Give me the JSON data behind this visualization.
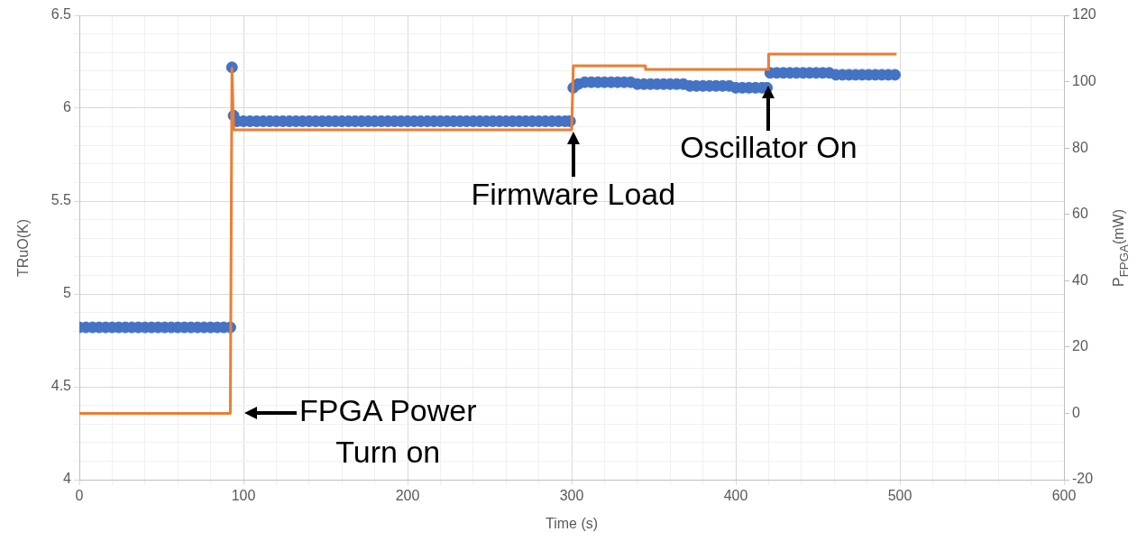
{
  "chart_data": {
    "type": "scatter",
    "xlabel": "Time (s)",
    "ylabel": "TRuO(K)",
    "y2label": "P$_{FPGA}$(mW)",
    "series": [
      {
        "marker": "circle",
        "color": "#4472c4",
        "x": [
          0,
          4,
          8,
          12,
          16,
          20,
          24,
          28,
          32,
          36,
          40,
          44,
          48,
          52,
          56,
          60,
          64,
          68,
          72,
          76,
          80,
          84,
          88,
          92,
          93,
          94,
          96,
          100,
          104,
          108,
          112,
          116,
          120,
          124,
          128,
          132,
          136,
          140,
          144,
          148,
          152,
          156,
          160,
          164,
          168,
          172,
          176,
          180,
          184,
          188,
          192,
          196,
          200,
          204,
          208,
          212,
          216,
          220,
          224,
          228,
          232,
          236,
          240,
          244,
          248,
          252,
          256,
          260,
          264,
          268,
          272,
          276,
          280,
          284,
          288,
          292,
          296,
          299,
          301,
          304,
          308,
          312,
          316,
          320,
          324,
          328,
          332,
          336,
          340,
          344,
          348,
          352,
          356,
          360,
          364,
          368,
          372,
          376,
          380,
          384,
          388,
          392,
          396,
          400,
          404,
          408,
          412,
          416,
          419,
          421,
          425,
          429,
          433,
          437,
          441,
          445,
          449,
          453,
          457,
          461,
          465,
          469,
          473,
          477,
          481,
          485,
          489,
          493,
          497
        ],
        "values": [
          4.82,
          4.82,
          4.82,
          4.82,
          4.82,
          4.82,
          4.82,
          4.82,
          4.82,
          4.82,
          4.82,
          4.82,
          4.82,
          4.82,
          4.82,
          4.82,
          4.82,
          4.82,
          4.82,
          4.82,
          4.82,
          4.82,
          4.82,
          4.82,
          6.22,
          5.96,
          5.93,
          5.93,
          5.93,
          5.93,
          5.93,
          5.93,
          5.93,
          5.93,
          5.93,
          5.93,
          5.93,
          5.93,
          5.93,
          5.93,
          5.93,
          5.93,
          5.93,
          5.93,
          5.93,
          5.93,
          5.93,
          5.93,
          5.93,
          5.93,
          5.93,
          5.93,
          5.93,
          5.93,
          5.93,
          5.93,
          5.93,
          5.93,
          5.93,
          5.93,
          5.93,
          5.93,
          5.93,
          5.93,
          5.93,
          5.93,
          5.93,
          5.93,
          5.93,
          5.93,
          5.93,
          5.93,
          5.93,
          5.93,
          5.93,
          5.93,
          5.93,
          5.93,
          6.11,
          6.13,
          6.14,
          6.14,
          6.14,
          6.14,
          6.14,
          6.14,
          6.14,
          6.14,
          6.13,
          6.13,
          6.13,
          6.13,
          6.13,
          6.13,
          6.13,
          6.13,
          6.12,
          6.12,
          6.12,
          6.12,
          6.12,
          6.12,
          6.12,
          6.11,
          6.11,
          6.11,
          6.11,
          6.11,
          6.11,
          6.19,
          6.19,
          6.19,
          6.19,
          6.19,
          6.19,
          6.19,
          6.19,
          6.19,
          6.19,
          6.18,
          6.18,
          6.18,
          6.18,
          6.18,
          6.18,
          6.18,
          6.18,
          6.18,
          6.18
        ]
      },
      {
        "type": "line",
        "marker": "none",
        "axis": "y2",
        "color": "#ed7d31",
        "x": [
          0,
          92,
          93,
          94,
          300,
          301,
          345,
          345,
          420,
          420,
          498
        ],
        "values": [
          0,
          0,
          104,
          85.5,
          85.5,
          104.8,
          104.8,
          103.7,
          103.7,
          108.3,
          108.3
        ]
      }
    ],
    "xlim": [
      0,
      600
    ],
    "xticks": [
      0,
      {
        "value": 20,
        "label": null
      },
      {
        "value": 40,
        "label": null
      },
      {
        "value": 60,
        "label": null
      },
      {
        "value": 80,
        "label": null
      },
      100,
      {
        "value": 120,
        "label": null
      },
      {
        "value": 140,
        "label": null
      },
      {
        "value": 160,
        "label": null
      },
      {
        "value": 180,
        "label": null
      },
      200,
      {
        "value": 220,
        "label": null
      },
      {
        "value": 240,
        "label": null
      },
      {
        "value": 260,
        "label": null
      },
      {
        "value": 280,
        "label": null
      },
      300,
      {
        "value": 320,
        "label": null
      },
      {
        "value": 340,
        "label": null
      },
      {
        "value": 360,
        "label": null
      },
      {
        "value": 380,
        "label": null
      },
      400,
      {
        "value": 420,
        "label": null
      },
      {
        "value": 440,
        "label": null
      },
      {
        "value": 460,
        "label": null
      },
      {
        "value": 480,
        "label": null
      },
      500,
      {
        "value": 520,
        "label": null
      },
      {
        "value": 540,
        "label": null
      },
      {
        "value": 560,
        "label": null
      },
      {
        "value": 580,
        "label": null
      },
      600
    ],
    "ylim": [
      4,
      6.5
    ],
    "yticks": [
      4,
      {
        "value": 4.1,
        "label": null
      },
      {
        "value": 4.2,
        "label": null
      },
      {
        "value": 4.3,
        "label": null
      },
      {
        "value": 4.4,
        "label": null
      },
      4.5,
      {
        "value": 4.6,
        "label": null
      },
      {
        "value": 4.7,
        "label": null
      },
      {
        "value": 4.8,
        "label": null
      },
      {
        "value": 4.9,
        "label": null
      },
      5,
      {
        "value": 5.1,
        "label": null
      },
      {
        "value": 5.2,
        "label": null
      },
      {
        "value": 5.3,
        "label": null
      },
      {
        "value": 5.4,
        "label": null
      },
      5.5,
      {
        "value": 5.6,
        "label": null
      },
      {
        "value": 5.7,
        "label": null
      },
      {
        "value": 5.8,
        "label": null
      },
      {
        "value": 5.9,
        "label": null
      },
      6,
      {
        "value": 6.1,
        "label": null
      },
      {
        "value": 6.2,
        "label": null
      },
      {
        "value": 6.3,
        "label": null
      },
      {
        "value": 6.4,
        "label": null
      },
      6.5
    ],
    "y2lim": [
      -20,
      120
    ],
    "y2ticks": [
      -20,
      0,
      20,
      40,
      60,
      80,
      100,
      120
    ],
    "grid": true,
    "legend": false,
    "annotations": [
      {
        "text": "FPGA Power\nTurn on",
        "x": 94,
        "y": 4.36
      },
      {
        "text": "Firmware Load",
        "x": 301,
        "y": 5.93
      },
      {
        "text": "Oscillator On",
        "x": 420,
        "y": 6.18
      }
    ]
  }
}
